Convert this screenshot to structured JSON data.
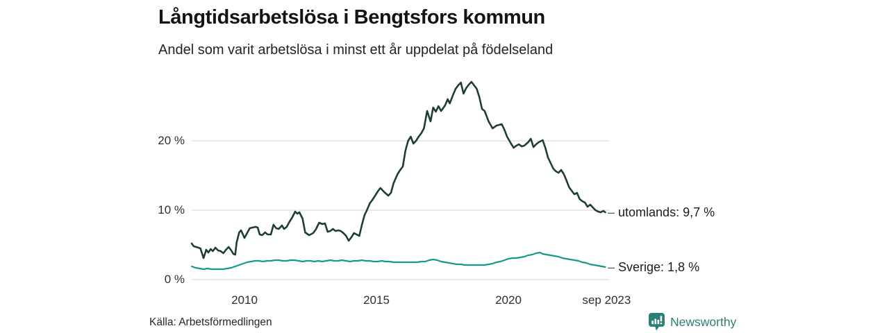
{
  "footer": {
    "source": "Källa: Arbetsförmedlingen",
    "brand_name": "Newsworthy",
    "brand_color": "#2e7e74",
    "brand_icon": "bar-chart-speech-bubble-icon"
  },
  "chart_data": {
    "type": "line",
    "title": "Långtidsarbetslösa i Bengtsfors kommun",
    "subtitle": "Andel som varit arbetslösa i minst ett år uppdelat på födelseland",
    "xlabel": "",
    "ylabel": "",
    "x_unit": "decimal_year",
    "y_unit": "percent",
    "xlim": [
      2008.0,
      2023.75
    ],
    "ylim": [
      0,
      29
    ],
    "grid": "horizontal-only",
    "legend_position": "end-of-line-labels",
    "label_dash": "–",
    "yticks": [
      {
        "value": 0,
        "label": "0 %"
      },
      {
        "value": 10,
        "label": "10 %"
      },
      {
        "value": 20,
        "label": "20 %"
      }
    ],
    "xticks": [
      {
        "value": 2010,
        "label": "2010"
      },
      {
        "value": 2015,
        "label": "2015"
      },
      {
        "value": 2020,
        "label": "2020"
      },
      {
        "value": 2023.72,
        "label": "sep 2023"
      }
    ],
    "colors": {
      "grid": "#dcdcdc",
      "tick_text": "#2e2e2e",
      "label_text": "#1c1c1c",
      "dash": "#5a5a5a"
    },
    "series": [
      {
        "name": "utomlands",
        "label": "utomlands: 9,7 %",
        "last_value": 9.7,
        "color": "#1e3d34",
        "line_width": 2.6,
        "points": [
          [
            2008.0,
            5.2
          ],
          [
            2008.08,
            4.8
          ],
          [
            2008.17,
            4.7
          ],
          [
            2008.25,
            4.6
          ],
          [
            2008.33,
            4.5
          ],
          [
            2008.45,
            3.1
          ],
          [
            2008.55,
            4.3
          ],
          [
            2008.63,
            3.9
          ],
          [
            2008.72,
            4.4
          ],
          [
            2008.8,
            4.1
          ],
          [
            2008.9,
            4.6
          ],
          [
            2009.0,
            4.2
          ],
          [
            2009.1,
            4.1
          ],
          [
            2009.2,
            3.8
          ],
          [
            2009.3,
            4.3
          ],
          [
            2009.4,
            4.7
          ],
          [
            2009.5,
            4.2
          ],
          [
            2009.58,
            3.7
          ],
          [
            2009.65,
            3.6
          ],
          [
            2009.7,
            5.3
          ],
          [
            2009.8,
            6.8
          ],
          [
            2009.87,
            7.1
          ],
          [
            2010.0,
            6.0
          ],
          [
            2010.1,
            6.7
          ],
          [
            2010.2,
            7.4
          ],
          [
            2010.3,
            7.5
          ],
          [
            2010.42,
            7.6
          ],
          [
            2010.5,
            7.5
          ],
          [
            2010.58,
            6.5
          ],
          [
            2010.67,
            6.4
          ],
          [
            2010.78,
            6.8
          ],
          [
            2010.88,
            6.5
          ],
          [
            2011.0,
            6.5
          ],
          [
            2011.1,
            7.9
          ],
          [
            2011.2,
            7.4
          ],
          [
            2011.3,
            7.3
          ],
          [
            2011.42,
            7.8
          ],
          [
            2011.5,
            7.3
          ],
          [
            2011.6,
            7.6
          ],
          [
            2011.7,
            8.3
          ],
          [
            2011.8,
            8.9
          ],
          [
            2011.92,
            9.8
          ],
          [
            2012.0,
            9.5
          ],
          [
            2012.08,
            9.7
          ],
          [
            2012.2,
            8.8
          ],
          [
            2012.3,
            6.8
          ],
          [
            2012.45,
            6.4
          ],
          [
            2012.6,
            6.7
          ],
          [
            2012.7,
            7.2
          ],
          [
            2012.83,
            8.2
          ],
          [
            2012.95,
            8.0
          ],
          [
            2013.05,
            8.1
          ],
          [
            2013.15,
            6.9
          ],
          [
            2013.25,
            7.0
          ],
          [
            2013.35,
            7.3
          ],
          [
            2013.45,
            7.0
          ],
          [
            2013.55,
            7.1
          ],
          [
            2013.65,
            7.0
          ],
          [
            2013.75,
            6.7
          ],
          [
            2013.85,
            6.3
          ],
          [
            2013.95,
            5.6
          ],
          [
            2014.05,
            6.1
          ],
          [
            2014.15,
            6.7
          ],
          [
            2014.25,
            6.5
          ],
          [
            2014.35,
            6.3
          ],
          [
            2014.45,
            7.9
          ],
          [
            2014.55,
            9.3
          ],
          [
            2014.65,
            10.1
          ],
          [
            2014.75,
            11.0
          ],
          [
            2014.85,
            11.5
          ],
          [
            2014.95,
            12.1
          ],
          [
            2015.05,
            12.7
          ],
          [
            2015.15,
            13.2
          ],
          [
            2015.3,
            12.6
          ],
          [
            2015.45,
            12.1
          ],
          [
            2015.55,
            12.5
          ],
          [
            2015.65,
            13.9
          ],
          [
            2015.8,
            15.2
          ],
          [
            2015.9,
            15.8
          ],
          [
            2016.0,
            16.3
          ],
          [
            2016.1,
            18.6
          ],
          [
            2016.2,
            20.0
          ],
          [
            2016.3,
            20.6
          ],
          [
            2016.4,
            19.6
          ],
          [
            2016.5,
            20.0
          ],
          [
            2016.6,
            20.6
          ],
          [
            2016.7,
            21.1
          ],
          [
            2016.8,
            21.8
          ],
          [
            2016.92,
            24.3
          ],
          [
            2017.05,
            22.8
          ],
          [
            2017.15,
            24.8
          ],
          [
            2017.25,
            24.2
          ],
          [
            2017.35,
            25.0
          ],
          [
            2017.45,
            24.3
          ],
          [
            2017.6,
            25.1
          ],
          [
            2017.7,
            26.0
          ],
          [
            2017.78,
            25.4
          ],
          [
            2017.9,
            26.6
          ],
          [
            2018.0,
            27.5
          ],
          [
            2018.1,
            28.0
          ],
          [
            2018.2,
            28.4
          ],
          [
            2018.3,
            26.8
          ],
          [
            2018.4,
            27.6
          ],
          [
            2018.5,
            28.1
          ],
          [
            2018.6,
            28.5
          ],
          [
            2018.7,
            28.0
          ],
          [
            2018.8,
            27.5
          ],
          [
            2018.9,
            26.3
          ],
          [
            2019.0,
            24.6
          ],
          [
            2019.1,
            24.3
          ],
          [
            2019.25,
            22.8
          ],
          [
            2019.4,
            21.8
          ],
          [
            2019.55,
            22.2
          ],
          [
            2019.65,
            22.3
          ],
          [
            2019.75,
            22.4
          ],
          [
            2019.85,
            21.6
          ],
          [
            2019.95,
            20.6
          ],
          [
            2020.1,
            19.6
          ],
          [
            2020.2,
            19.0
          ],
          [
            2020.3,
            19.3
          ],
          [
            2020.4,
            19.5
          ],
          [
            2020.5,
            19.2
          ],
          [
            2020.6,
            19.3
          ],
          [
            2020.75,
            19.8
          ],
          [
            2020.85,
            20.3
          ],
          [
            2020.95,
            19.1
          ],
          [
            2021.05,
            19.5
          ],
          [
            2021.15,
            19.8
          ],
          [
            2021.3,
            20.1
          ],
          [
            2021.4,
            19.0
          ],
          [
            2021.5,
            17.6
          ],
          [
            2021.6,
            16.8
          ],
          [
            2021.7,
            16.0
          ],
          [
            2021.8,
            15.6
          ],
          [
            2021.9,
            15.4
          ],
          [
            2022.0,
            15.8
          ],
          [
            2022.1,
            15.2
          ],
          [
            2022.2,
            14.3
          ],
          [
            2022.3,
            13.3
          ],
          [
            2022.4,
            12.8
          ],
          [
            2022.5,
            12.3
          ],
          [
            2022.6,
            12.5
          ],
          [
            2022.7,
            11.6
          ],
          [
            2022.8,
            11.3
          ],
          [
            2022.9,
            11.1
          ],
          [
            2023.0,
            10.5
          ],
          [
            2023.1,
            10.8
          ],
          [
            2023.2,
            10.4
          ],
          [
            2023.3,
            10.0
          ],
          [
            2023.4,
            9.8
          ],
          [
            2023.5,
            9.7
          ],
          [
            2023.6,
            9.9
          ],
          [
            2023.67,
            9.7
          ]
        ]
      },
      {
        "name": "Sverige",
        "label": "Sverige: 1,8 %",
        "last_value": 1.8,
        "color": "#17998a",
        "line_width": 2.2,
        "points": [
          [
            2008.0,
            1.9
          ],
          [
            2008.15,
            1.7
          ],
          [
            2008.3,
            1.6
          ],
          [
            2008.45,
            1.5
          ],
          [
            2008.6,
            1.6
          ],
          [
            2008.75,
            1.5
          ],
          [
            2008.9,
            1.5
          ],
          [
            2009.05,
            1.5
          ],
          [
            2009.2,
            1.5
          ],
          [
            2009.35,
            1.6
          ],
          [
            2009.5,
            1.7
          ],
          [
            2009.65,
            1.9
          ],
          [
            2009.8,
            2.1
          ],
          [
            2009.95,
            2.3
          ],
          [
            2010.1,
            2.5
          ],
          [
            2010.25,
            2.6
          ],
          [
            2010.4,
            2.7
          ],
          [
            2010.55,
            2.7
          ],
          [
            2010.7,
            2.6
          ],
          [
            2010.85,
            2.7
          ],
          [
            2011.0,
            2.7
          ],
          [
            2011.15,
            2.8
          ],
          [
            2011.3,
            2.8
          ],
          [
            2011.45,
            2.7
          ],
          [
            2011.6,
            2.7
          ],
          [
            2011.75,
            2.8
          ],
          [
            2011.9,
            2.8
          ],
          [
            2012.05,
            2.7
          ],
          [
            2012.2,
            2.6
          ],
          [
            2012.35,
            2.7
          ],
          [
            2012.5,
            2.7
          ],
          [
            2012.65,
            2.6
          ],
          [
            2012.8,
            2.7
          ],
          [
            2012.95,
            2.6
          ],
          [
            2013.1,
            2.7
          ],
          [
            2013.25,
            2.8
          ],
          [
            2013.4,
            2.7
          ],
          [
            2013.55,
            2.7
          ],
          [
            2013.7,
            2.8
          ],
          [
            2013.85,
            2.7
          ],
          [
            2014.0,
            2.6
          ],
          [
            2014.15,
            2.7
          ],
          [
            2014.3,
            2.7
          ],
          [
            2014.45,
            2.8
          ],
          [
            2014.6,
            2.7
          ],
          [
            2014.75,
            2.7
          ],
          [
            2014.9,
            2.6
          ],
          [
            2015.05,
            2.6
          ],
          [
            2015.2,
            2.7
          ],
          [
            2015.35,
            2.6
          ],
          [
            2015.5,
            2.6
          ],
          [
            2015.65,
            2.5
          ],
          [
            2015.8,
            2.5
          ],
          [
            2015.95,
            2.5
          ],
          [
            2016.1,
            2.5
          ],
          [
            2016.25,
            2.5
          ],
          [
            2016.4,
            2.5
          ],
          [
            2016.55,
            2.5
          ],
          [
            2016.7,
            2.6
          ],
          [
            2016.85,
            2.6
          ],
          [
            2017.0,
            2.8
          ],
          [
            2017.15,
            2.9
          ],
          [
            2017.3,
            2.8
          ],
          [
            2017.45,
            2.6
          ],
          [
            2017.6,
            2.5
          ],
          [
            2017.75,
            2.4
          ],
          [
            2017.9,
            2.3
          ],
          [
            2018.05,
            2.2
          ],
          [
            2018.2,
            2.2
          ],
          [
            2018.35,
            2.1
          ],
          [
            2018.5,
            2.1
          ],
          [
            2018.65,
            2.1
          ],
          [
            2018.8,
            2.1
          ],
          [
            2018.95,
            2.1
          ],
          [
            2019.1,
            2.1
          ],
          [
            2019.25,
            2.2
          ],
          [
            2019.4,
            2.3
          ],
          [
            2019.55,
            2.5
          ],
          [
            2019.7,
            2.6
          ],
          [
            2019.85,
            2.8
          ],
          [
            2020.0,
            3.0
          ],
          [
            2020.15,
            3.1
          ],
          [
            2020.3,
            3.1
          ],
          [
            2020.45,
            3.2
          ],
          [
            2020.6,
            3.3
          ],
          [
            2020.75,
            3.5
          ],
          [
            2020.9,
            3.6
          ],
          [
            2021.05,
            3.8
          ],
          [
            2021.2,
            3.9
          ],
          [
            2021.3,
            3.7
          ],
          [
            2021.45,
            3.6
          ],
          [
            2021.6,
            3.5
          ],
          [
            2021.75,
            3.4
          ],
          [
            2021.9,
            3.3
          ],
          [
            2022.05,
            3.1
          ],
          [
            2022.2,
            3.0
          ],
          [
            2022.35,
            2.9
          ],
          [
            2022.5,
            2.8
          ],
          [
            2022.65,
            2.7
          ],
          [
            2022.8,
            2.5
          ],
          [
            2022.95,
            2.4
          ],
          [
            2023.1,
            2.2
          ],
          [
            2023.25,
            2.1
          ],
          [
            2023.4,
            2.0
          ],
          [
            2023.55,
            1.9
          ],
          [
            2023.67,
            1.8
          ]
        ]
      }
    ]
  }
}
